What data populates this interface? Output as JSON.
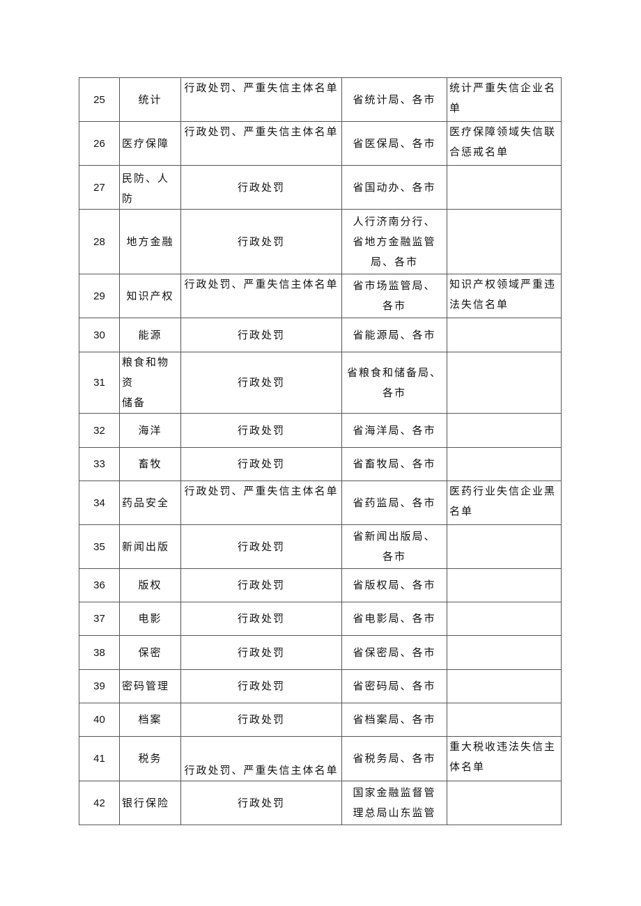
{
  "rows": [
    {
      "no": "25",
      "field": "统计",
      "measures": "行政处罚、严重失信主体名单",
      "dept": "省统计局、各市",
      "list": "统计严重失信企业名\n单"
    },
    {
      "no": "26",
      "field": "医疗保障",
      "measures": "行政处罚、严重失信主体名单",
      "dept": "省医保局、各市",
      "list": "医疗保障领域失信联\n合惩戒名单"
    },
    {
      "no": "27",
      "field": "民防、人防",
      "measures": "行政处罚",
      "dept": "省国动办、各市",
      "list": ""
    },
    {
      "no": "28",
      "field": "地方金融",
      "measures": "行政处罚",
      "dept": "人行济南分行、\n省地方金融监管\n局、各市",
      "list": ""
    },
    {
      "no": "29",
      "field": "知识产权",
      "measures": "行政处罚、严重失信主体名单",
      "dept": "省市场监管局、\n各市",
      "list": "知识产权领域严重违\n法失信名单"
    },
    {
      "no": "30",
      "field": "能源",
      "measures": "行政处罚",
      "dept": "省能源局、各市",
      "list": ""
    },
    {
      "no": "31",
      "field": "粮食和物资\n储备",
      "measures": "行政处罚",
      "dept": "省粮食和储备局、\n各市",
      "list": ""
    },
    {
      "no": "32",
      "field": "海洋",
      "measures": "行政处罚",
      "dept": "省海洋局、各市",
      "list": ""
    },
    {
      "no": "33",
      "field": "畜牧",
      "measures": "行政处罚",
      "dept": "省畜牧局、各市",
      "list": ""
    },
    {
      "no": "34",
      "field": "药品安全",
      "measures": "行政处罚、严重失信主体名单",
      "dept": "省药监局、各市",
      "list": "医药行业失信企业黑\n名单"
    },
    {
      "no": "35",
      "field": "新闻出版",
      "measures": "行政处罚",
      "dept": "省新闻出版局、\n各市",
      "list": ""
    },
    {
      "no": "36",
      "field": "版权",
      "measures": "行政处罚",
      "dept": "省版权局、各市",
      "list": ""
    },
    {
      "no": "37",
      "field": "电影",
      "measures": "行政处罚",
      "dept": "省电影局、各市",
      "list": ""
    },
    {
      "no": "38",
      "field": "保密",
      "measures": "行政处罚",
      "dept": "省保密局、各市",
      "list": ""
    },
    {
      "no": "39",
      "field": "密码管理",
      "measures": "行政处罚",
      "dept": "省密码局、各市",
      "list": ""
    },
    {
      "no": "40",
      "field": "档案",
      "measures": "行政处罚",
      "dept": "省档案局、各市",
      "list": ""
    },
    {
      "no": "41",
      "field": "税务",
      "measures": "行政处罚、严重失信主体名单",
      "dept": "省税务局、各市",
      "list": "重大税收违法失信主\n体名单"
    },
    {
      "no": "42",
      "field": "银行保险",
      "measures": "行政处罚",
      "dept": "国家金融监督管\n理总局山东监管",
      "list": ""
    }
  ]
}
